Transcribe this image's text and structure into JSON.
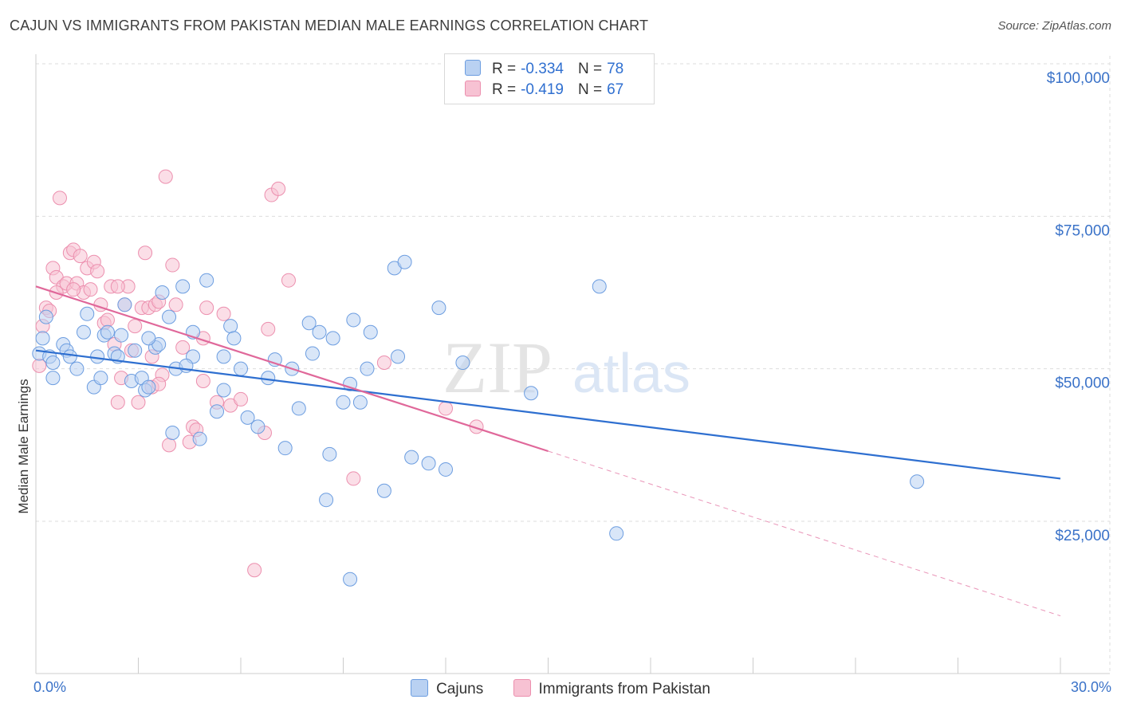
{
  "title": "CAJUN VS IMMIGRANTS FROM PAKISTAN MEDIAN MALE EARNINGS CORRELATION CHART",
  "source": "Source: ZipAtlas.com",
  "watermark": {
    "zip": "ZIP",
    "atlas": "atlas"
  },
  "colors": {
    "blue_fill": "#b9d1f2",
    "blue_stroke": "#6c9de0",
    "blue_line": "#2e6fd0",
    "pink_fill": "#f7c2d3",
    "pink_stroke": "#ec8fae",
    "pink_line": "#e0689a",
    "axis_text": "#3a72c8",
    "grid": "#dddddd"
  },
  "legend": {
    "rows": [
      {
        "r_label": "R =",
        "r_value": "-0.334",
        "n_label": "N =",
        "n_value": "78"
      },
      {
        "r_label": "R =",
        "r_value": "-0.419",
        "n_label": "N =",
        "n_value": "67"
      }
    ]
  },
  "bottom_legend": [
    "Cajuns",
    "Immigrants from Pakistan"
  ],
  "x_axis": {
    "min_label": "0.0%",
    "max_label": "30.0%"
  },
  "chart_data": {
    "type": "scatter",
    "xlabel": "",
    "ylabel": "Median Male Earnings",
    "xlim": [
      0,
      30
    ],
    "ylim": [
      0,
      105000
    ],
    "y_ticks": [
      25000,
      50000,
      75000,
      100000
    ],
    "y_tick_labels": [
      "$25,000",
      "$50,000",
      "$75,000",
      "$100,000"
    ],
    "grid": true,
    "legend_position": "top-center",
    "series": [
      {
        "name": "Cajuns",
        "trend": {
          "x": [
            0,
            30
          ],
          "y": [
            53000,
            32000
          ]
        },
        "points": [
          [
            0.1,
            52500
          ],
          [
            0.3,
            58500
          ],
          [
            0.4,
            52000
          ],
          [
            0.5,
            51000
          ],
          [
            0.5,
            48500
          ],
          [
            0.8,
            54000
          ],
          [
            0.9,
            53000
          ],
          [
            1.0,
            52000
          ],
          [
            1.2,
            50000
          ],
          [
            1.4,
            56000
          ],
          [
            1.5,
            59000
          ],
          [
            1.7,
            47000
          ],
          [
            1.8,
            52000
          ],
          [
            1.9,
            48500
          ],
          [
            2.0,
            55500
          ],
          [
            2.1,
            56000
          ],
          [
            2.3,
            52500
          ],
          [
            2.4,
            52000
          ],
          [
            2.5,
            55500
          ],
          [
            2.6,
            60500
          ],
          [
            2.8,
            48000
          ],
          [
            2.9,
            53000
          ],
          [
            3.1,
            48500
          ],
          [
            3.2,
            46500
          ],
          [
            3.3,
            47000
          ],
          [
            3.5,
            53500
          ],
          [
            3.6,
            54000
          ],
          [
            3.7,
            62500
          ],
          [
            3.9,
            58500
          ],
          [
            4.0,
            39500
          ],
          [
            4.1,
            50000
          ],
          [
            4.3,
            63500
          ],
          [
            4.6,
            52000
          ],
          [
            4.6,
            56000
          ],
          [
            4.8,
            38500
          ],
          [
            5.0,
            64500
          ],
          [
            5.3,
            43000
          ],
          [
            5.5,
            46500
          ],
          [
            5.5,
            52000
          ],
          [
            5.7,
            57000
          ],
          [
            5.8,
            55000
          ],
          [
            6.0,
            50000
          ],
          [
            6.2,
            42000
          ],
          [
            6.5,
            40500
          ],
          [
            6.8,
            48500
          ],
          [
            7.0,
            51500
          ],
          [
            7.3,
            37000
          ],
          [
            7.5,
            50000
          ],
          [
            7.7,
            43500
          ],
          [
            8.0,
            57500
          ],
          [
            8.1,
            52500
          ],
          [
            8.3,
            56000
          ],
          [
            8.5,
            28500
          ],
          [
            8.6,
            36000
          ],
          [
            8.7,
            55000
          ],
          [
            9.0,
            44500
          ],
          [
            9.2,
            47500
          ],
          [
            9.2,
            15500
          ],
          [
            9.3,
            58000
          ],
          [
            9.5,
            44500
          ],
          [
            9.7,
            50000
          ],
          [
            9.8,
            56000
          ],
          [
            10.2,
            30000
          ],
          [
            10.5,
            66500
          ],
          [
            10.6,
            52000
          ],
          [
            10.8,
            67500
          ],
          [
            11.0,
            35500
          ],
          [
            11.5,
            34500
          ],
          [
            11.8,
            60000
          ],
          [
            12.0,
            33500
          ],
          [
            12.5,
            51000
          ],
          [
            14.5,
            46000
          ],
          [
            16.5,
            63500
          ],
          [
            17.0,
            23000
          ],
          [
            25.8,
            31500
          ],
          [
            0.2,
            55000
          ],
          [
            4.4,
            50500
          ],
          [
            3.3,
            55000
          ]
        ]
      },
      {
        "name": "Immigrants from Pakistan",
        "trend": {
          "x": [
            0,
            15
          ],
          "y": [
            63500,
            36500
          ]
        },
        "trend_ext": {
          "x": [
            15,
            30
          ],
          "y": [
            36500,
            9500
          ]
        },
        "points": [
          [
            0.1,
            50500
          ],
          [
            0.2,
            57000
          ],
          [
            0.3,
            60000
          ],
          [
            0.4,
            59500
          ],
          [
            0.5,
            66500
          ],
          [
            0.6,
            65000
          ],
          [
            0.7,
            78000
          ],
          [
            0.8,
            63500
          ],
          [
            0.9,
            64000
          ],
          [
            1.0,
            69000
          ],
          [
            1.1,
            69500
          ],
          [
            1.2,
            64000
          ],
          [
            1.3,
            68500
          ],
          [
            1.4,
            62500
          ],
          [
            1.5,
            66500
          ],
          [
            1.6,
            63000
          ],
          [
            1.7,
            67500
          ],
          [
            1.8,
            66000
          ],
          [
            1.9,
            60500
          ],
          [
            2.0,
            57500
          ],
          [
            2.1,
            58000
          ],
          [
            2.2,
            63500
          ],
          [
            2.3,
            54000
          ],
          [
            2.4,
            44500
          ],
          [
            2.5,
            48500
          ],
          [
            2.6,
            60500
          ],
          [
            2.7,
            63500
          ],
          [
            2.8,
            53000
          ],
          [
            2.9,
            57000
          ],
          [
            3.0,
            44500
          ],
          [
            3.1,
            60000
          ],
          [
            3.2,
            69000
          ],
          [
            3.3,
            60000
          ],
          [
            3.4,
            47000
          ],
          [
            3.5,
            60500
          ],
          [
            3.6,
            61000
          ],
          [
            3.7,
            49000
          ],
          [
            3.8,
            81500
          ],
          [
            3.9,
            37500
          ],
          [
            4.0,
            67000
          ],
          [
            4.1,
            60500
          ],
          [
            4.3,
            53500
          ],
          [
            4.5,
            38000
          ],
          [
            4.6,
            40500
          ],
          [
            4.7,
            40000
          ],
          [
            4.9,
            55000
          ],
          [
            5.0,
            60000
          ],
          [
            5.3,
            44500
          ],
          [
            5.5,
            59000
          ],
          [
            5.7,
            44000
          ],
          [
            6.0,
            45000
          ],
          [
            6.4,
            17000
          ],
          [
            6.7,
            39500
          ],
          [
            6.8,
            56500
          ],
          [
            6.9,
            78500
          ],
          [
            7.1,
            79500
          ],
          [
            7.4,
            64500
          ],
          [
            9.3,
            32000
          ],
          [
            10.2,
            51000
          ],
          [
            12.0,
            43500
          ],
          [
            12.9,
            40500
          ],
          [
            0.6,
            62500
          ],
          [
            1.1,
            63000
          ],
          [
            2.4,
            63500
          ],
          [
            3.4,
            52000
          ],
          [
            3.6,
            47500
          ],
          [
            4.9,
            48000
          ]
        ]
      }
    ]
  }
}
